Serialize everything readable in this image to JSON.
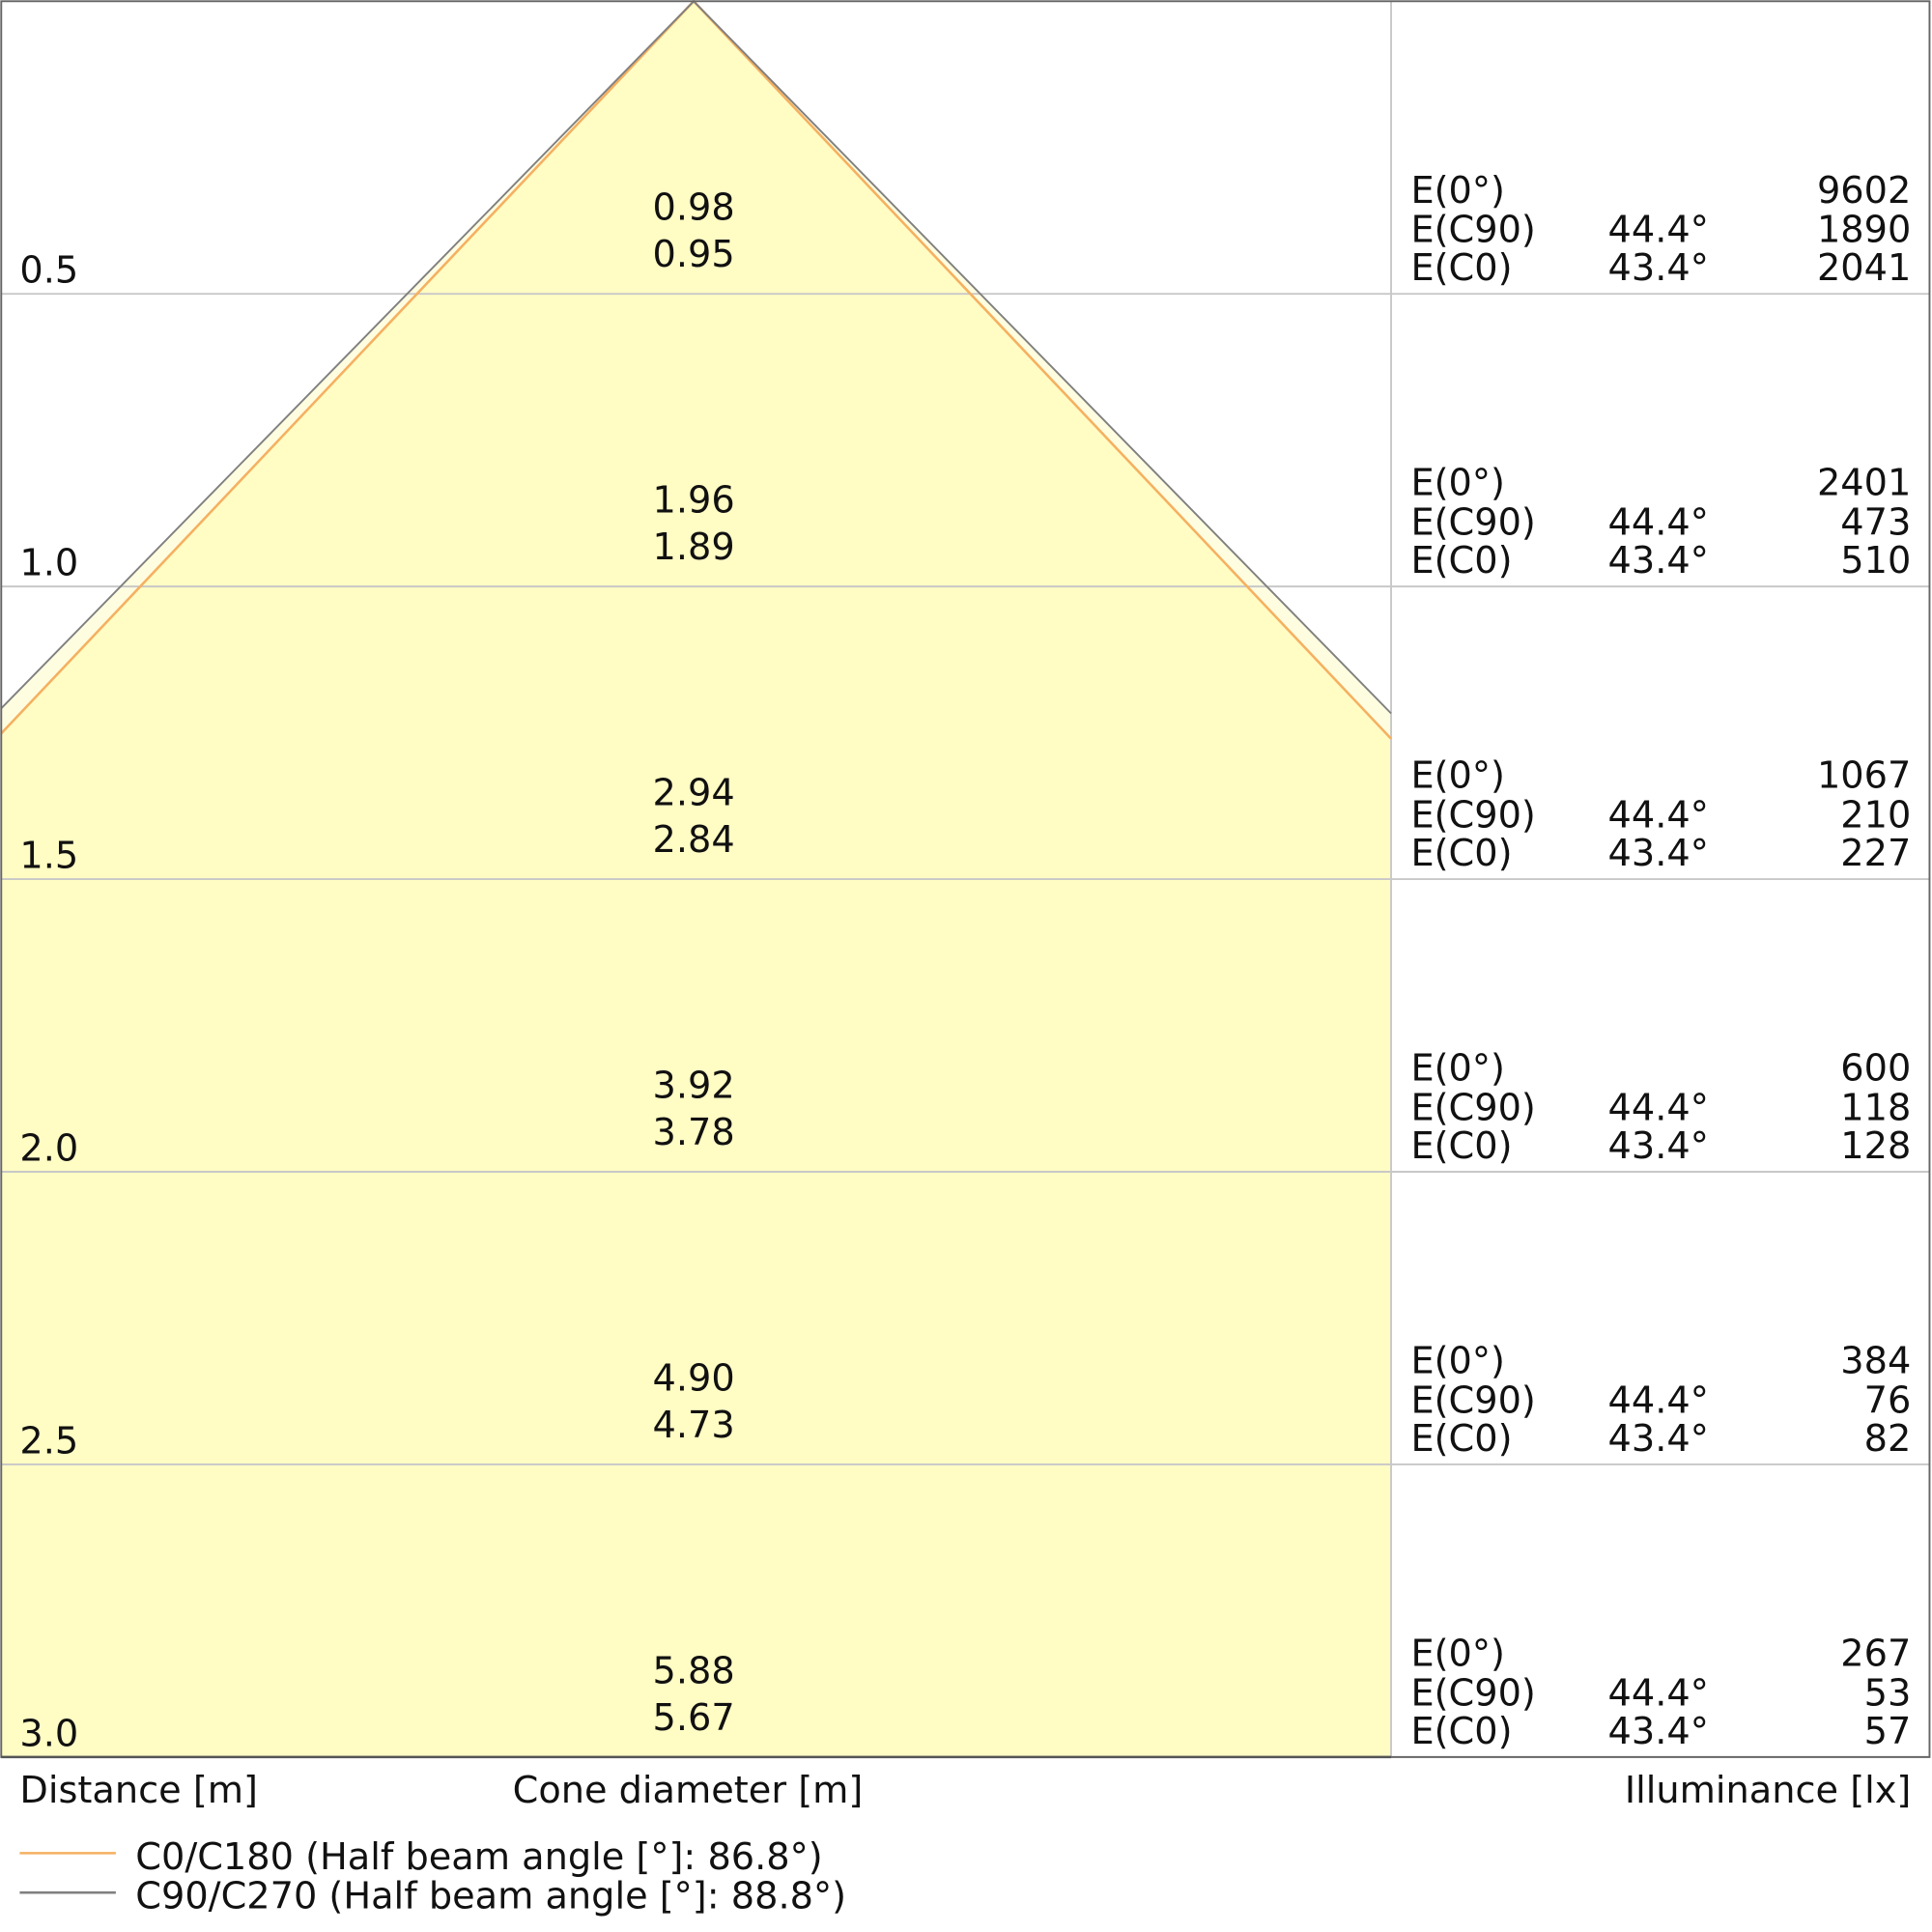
{
  "chart_data": {
    "type": "cone-diagram",
    "xlabel": "Cone diameter [m]",
    "ylabel": "Distance [m]",
    "table_label": "Illuminance [lx]",
    "ylim": [
      0,
      3.0
    ],
    "grid": true,
    "colors": {
      "fill": "#fffcc4",
      "c0": "#f5b060",
      "c90": "#808080",
      "grid": "#c8c8c8",
      "frame": "#666666"
    },
    "series": [
      {
        "name": "C0/C180 (Half beam angle [°]: 86.8°)",
        "half_angle": 43.4
      },
      {
        "name": "C90/C270 (Half beam angle [°]: 88.8°)",
        "half_angle": 44.4
      }
    ],
    "legend_position": "bottom-left",
    "rows": [
      {
        "distance": "0.5",
        "d_c90": "0.98",
        "d_c0": "0.95",
        "e0_label": "E(0°)",
        "e0": "9602",
        "ec90_label": "E(C90)",
        "ec90_angle": "44.4°",
        "ec90": "1890",
        "ec0_label": "E(C0)",
        "ec0_angle": "43.4°",
        "ec0": "2041"
      },
      {
        "distance": "1.0",
        "d_c90": "1.96",
        "d_c0": "1.89",
        "e0_label": "E(0°)",
        "e0": "2401",
        "ec90_label": "E(C90)",
        "ec90_angle": "44.4°",
        "ec90": "473",
        "ec0_label": "E(C0)",
        "ec0_angle": "43.4°",
        "ec0": "510"
      },
      {
        "distance": "1.5",
        "d_c90": "2.94",
        "d_c0": "2.84",
        "e0_label": "E(0°)",
        "e0": "1067",
        "ec90_label": "E(C90)",
        "ec90_angle": "44.4°",
        "ec90": "210",
        "ec0_label": "E(C0)",
        "ec0_angle": "43.4°",
        "ec0": "227"
      },
      {
        "distance": "2.0",
        "d_c90": "3.92",
        "d_c0": "3.78",
        "e0_label": "E(0°)",
        "e0": "600",
        "ec90_label": "E(C90)",
        "ec90_angle": "44.4°",
        "ec90": "118",
        "ec0_label": "E(C0)",
        "ec0_angle": "43.4°",
        "ec0": "128"
      },
      {
        "distance": "2.5",
        "d_c90": "4.90",
        "d_c0": "4.73",
        "e0_label": "E(0°)",
        "e0": "384",
        "ec90_label": "E(C90)",
        "ec90_angle": "44.4°",
        "ec90": "76",
        "ec0_label": "E(C0)",
        "ec0_angle": "43.4°",
        "ec0": "82"
      },
      {
        "distance": "3.0",
        "d_c90": "5.88",
        "d_c0": "5.67",
        "e0_label": "E(0°)",
        "e0": "267",
        "ec90_label": "E(C90)",
        "ec90_angle": "44.4°",
        "ec90": "53",
        "ec0_label": "E(C0)",
        "ec0_angle": "43.4°",
        "ec0": "57"
      }
    ]
  }
}
